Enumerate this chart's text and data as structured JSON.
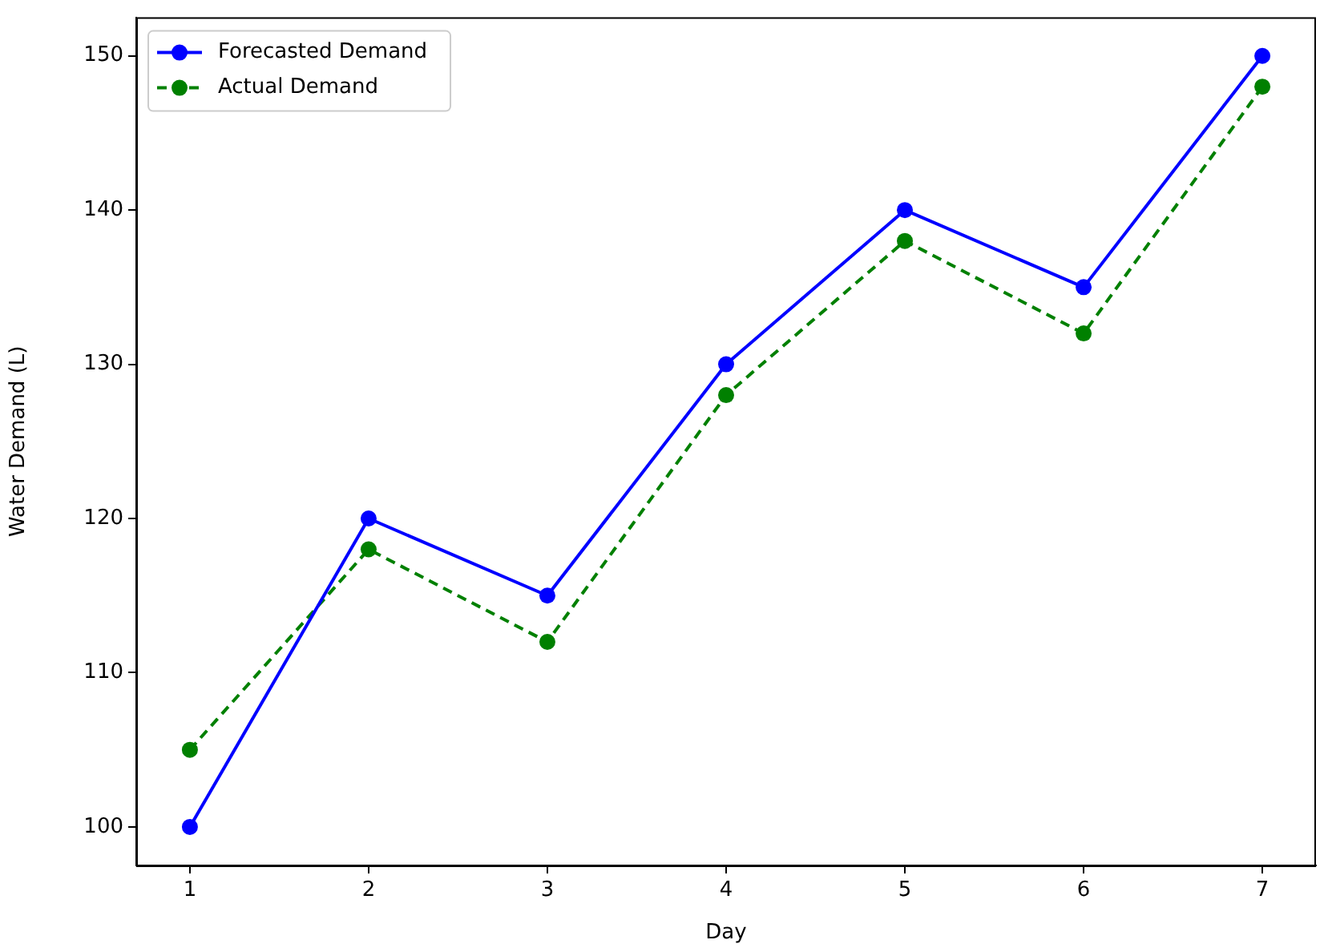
{
  "chart_data": {
    "type": "line",
    "xlabel": "Day",
    "ylabel": "Water Demand (L)",
    "x": [
      1,
      2,
      3,
      4,
      5,
      6,
      7
    ],
    "series": [
      {
        "name": "Forecasted Demand",
        "color": "#0000ff",
        "values": [
          100,
          120,
          115,
          130,
          140,
          135,
          150
        ],
        "line_style": "solid"
      },
      {
        "name": "Actual Demand",
        "color": "#008000",
        "values": [
          105,
          118,
          112,
          128,
          138,
          132,
          148
        ],
        "line_style": "dashed"
      }
    ],
    "xlim": [
      0.7,
      7.3
    ],
    "xticks": [
      1,
      2,
      3,
      4,
      5,
      6,
      7
    ],
    "ylim": [
      97.5,
      152.5
    ],
    "yticks": [
      100,
      110,
      120,
      130,
      140,
      150
    ],
    "grid": false,
    "legend": "top left",
    "marker": "circle"
  }
}
